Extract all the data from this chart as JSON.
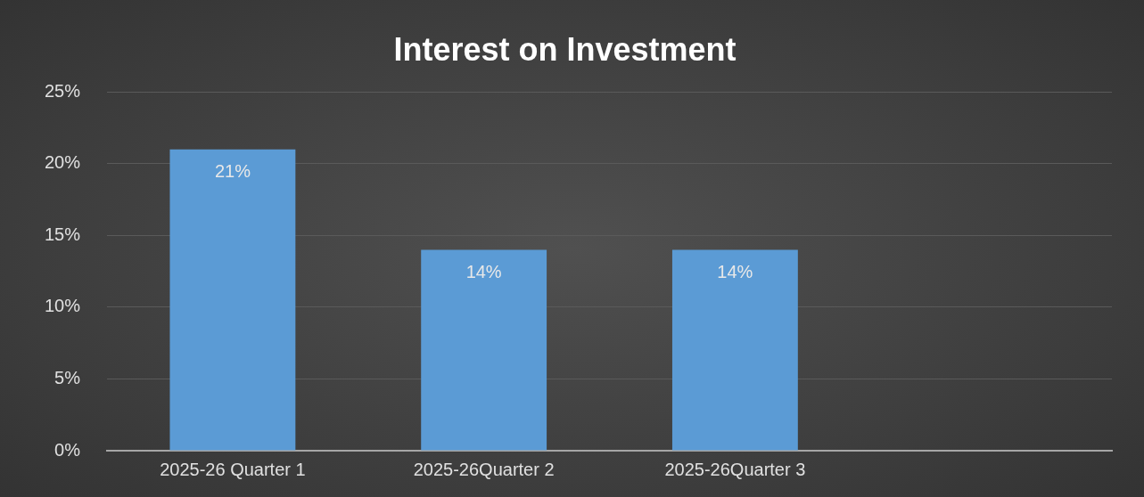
{
  "chart_data": {
    "type": "bar",
    "title": "Interest on Investment",
    "categories": [
      "2025-26 Quarter 1",
      "2025-26Quarter 2",
      "2025-26Quarter 3",
      null
    ],
    "values": [
      21,
      14,
      14,
      null
    ],
    "value_labels": [
      "21%",
      "14%",
      "14%",
      null
    ],
    "color": "#5b9bd5",
    "ylim": [
      0,
      25
    ],
    "yticks": [
      {
        "value": 0,
        "label": "0%"
      },
      {
        "value": 5,
        "label": "5%"
      },
      {
        "value": 10,
        "label": "10%"
      },
      {
        "value": 15,
        "label": "15%"
      },
      {
        "value": 20,
        "label": "20%"
      },
      {
        "value": 25,
        "label": "25%"
      }
    ],
    "grid": "y",
    "legend": false
  }
}
